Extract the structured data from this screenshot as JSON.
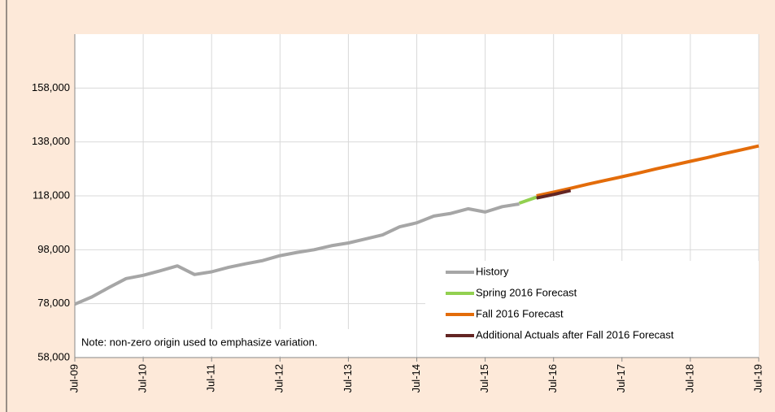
{
  "chart_data": {
    "type": "line",
    "categories": [
      "Jul-09",
      null,
      null,
      null,
      "Jul-10",
      null,
      null,
      null,
      "Jul-11",
      null,
      null,
      null,
      "Jul-12",
      null,
      null,
      null,
      "Jul-13",
      null,
      null,
      null,
      "Jul-14",
      null,
      null,
      null,
      "Jul-15",
      null,
      null,
      null,
      "Jul-16",
      null,
      null,
      null,
      "Jul-17",
      null,
      null,
      null,
      "Jul-18",
      null,
      null,
      null,
      "Jul-19"
    ],
    "series": [
      {
        "name": "History",
        "color": "#a6a6a6",
        "values": [
          77800,
          80500,
          84000,
          87300,
          88500,
          90200,
          92000,
          88800,
          89800,
          91500,
          92800,
          94000,
          95800,
          97000,
          98000,
          99500,
          100500,
          102000,
          103500,
          106500,
          108000,
          110500,
          111500,
          113200,
          112000,
          114000,
          115000,
          null,
          null,
          null,
          null,
          null,
          null,
          null,
          null,
          null,
          null,
          null,
          null,
          null,
          null
        ]
      },
      {
        "name": "Spring 2016 Forecast",
        "color": "#92d050",
        "values": [
          null,
          null,
          null,
          null,
          null,
          null,
          null,
          null,
          null,
          null,
          null,
          null,
          null,
          null,
          null,
          null,
          null,
          null,
          null,
          null,
          null,
          null,
          null,
          null,
          null,
          null,
          115300,
          117500,
          null,
          null,
          null,
          null,
          null,
          null,
          null,
          null,
          null,
          null,
          null,
          null,
          null
        ]
      },
      {
        "name": "Fall 2016 Forecast",
        "color": "#e36c0a",
        "values": [
          null,
          null,
          null,
          null,
          null,
          null,
          null,
          null,
          null,
          null,
          null,
          null,
          null,
          null,
          null,
          null,
          null,
          null,
          null,
          null,
          null,
          null,
          null,
          null,
          null,
          null,
          null,
          118000,
          119400,
          120800,
          122300,
          123700,
          125100,
          126500,
          128000,
          129400,
          130800,
          132200,
          133700,
          135100,
          136500
        ]
      },
      {
        "name": "Additional Actuals after Fall 2016 Forecast",
        "color": "#632523",
        "values": [
          null,
          null,
          null,
          null,
          null,
          null,
          null,
          null,
          null,
          null,
          null,
          null,
          null,
          null,
          null,
          null,
          null,
          null,
          null,
          null,
          null,
          null,
          null,
          null,
          null,
          null,
          null,
          117200,
          118500,
          120000,
          null,
          null,
          null,
          null,
          null,
          null,
          null,
          null,
          null,
          null,
          null
        ]
      }
    ],
    "ylim": [
      58000,
      178000
    ],
    "yticks": [
      {
        "value": 58000,
        "label": "58,000"
      },
      {
        "value": 78000,
        "label": "78,000"
      },
      {
        "value": 98000,
        "label": "98,000"
      },
      {
        "value": 118000,
        "label": "118,000"
      },
      {
        "value": 138000,
        "label": "138,000"
      },
      {
        "value": 158000,
        "label": "158,000"
      }
    ],
    "grid": true,
    "legend": "lower right",
    "annotation": "Note: non-zero origin used to emphasize variation."
  }
}
